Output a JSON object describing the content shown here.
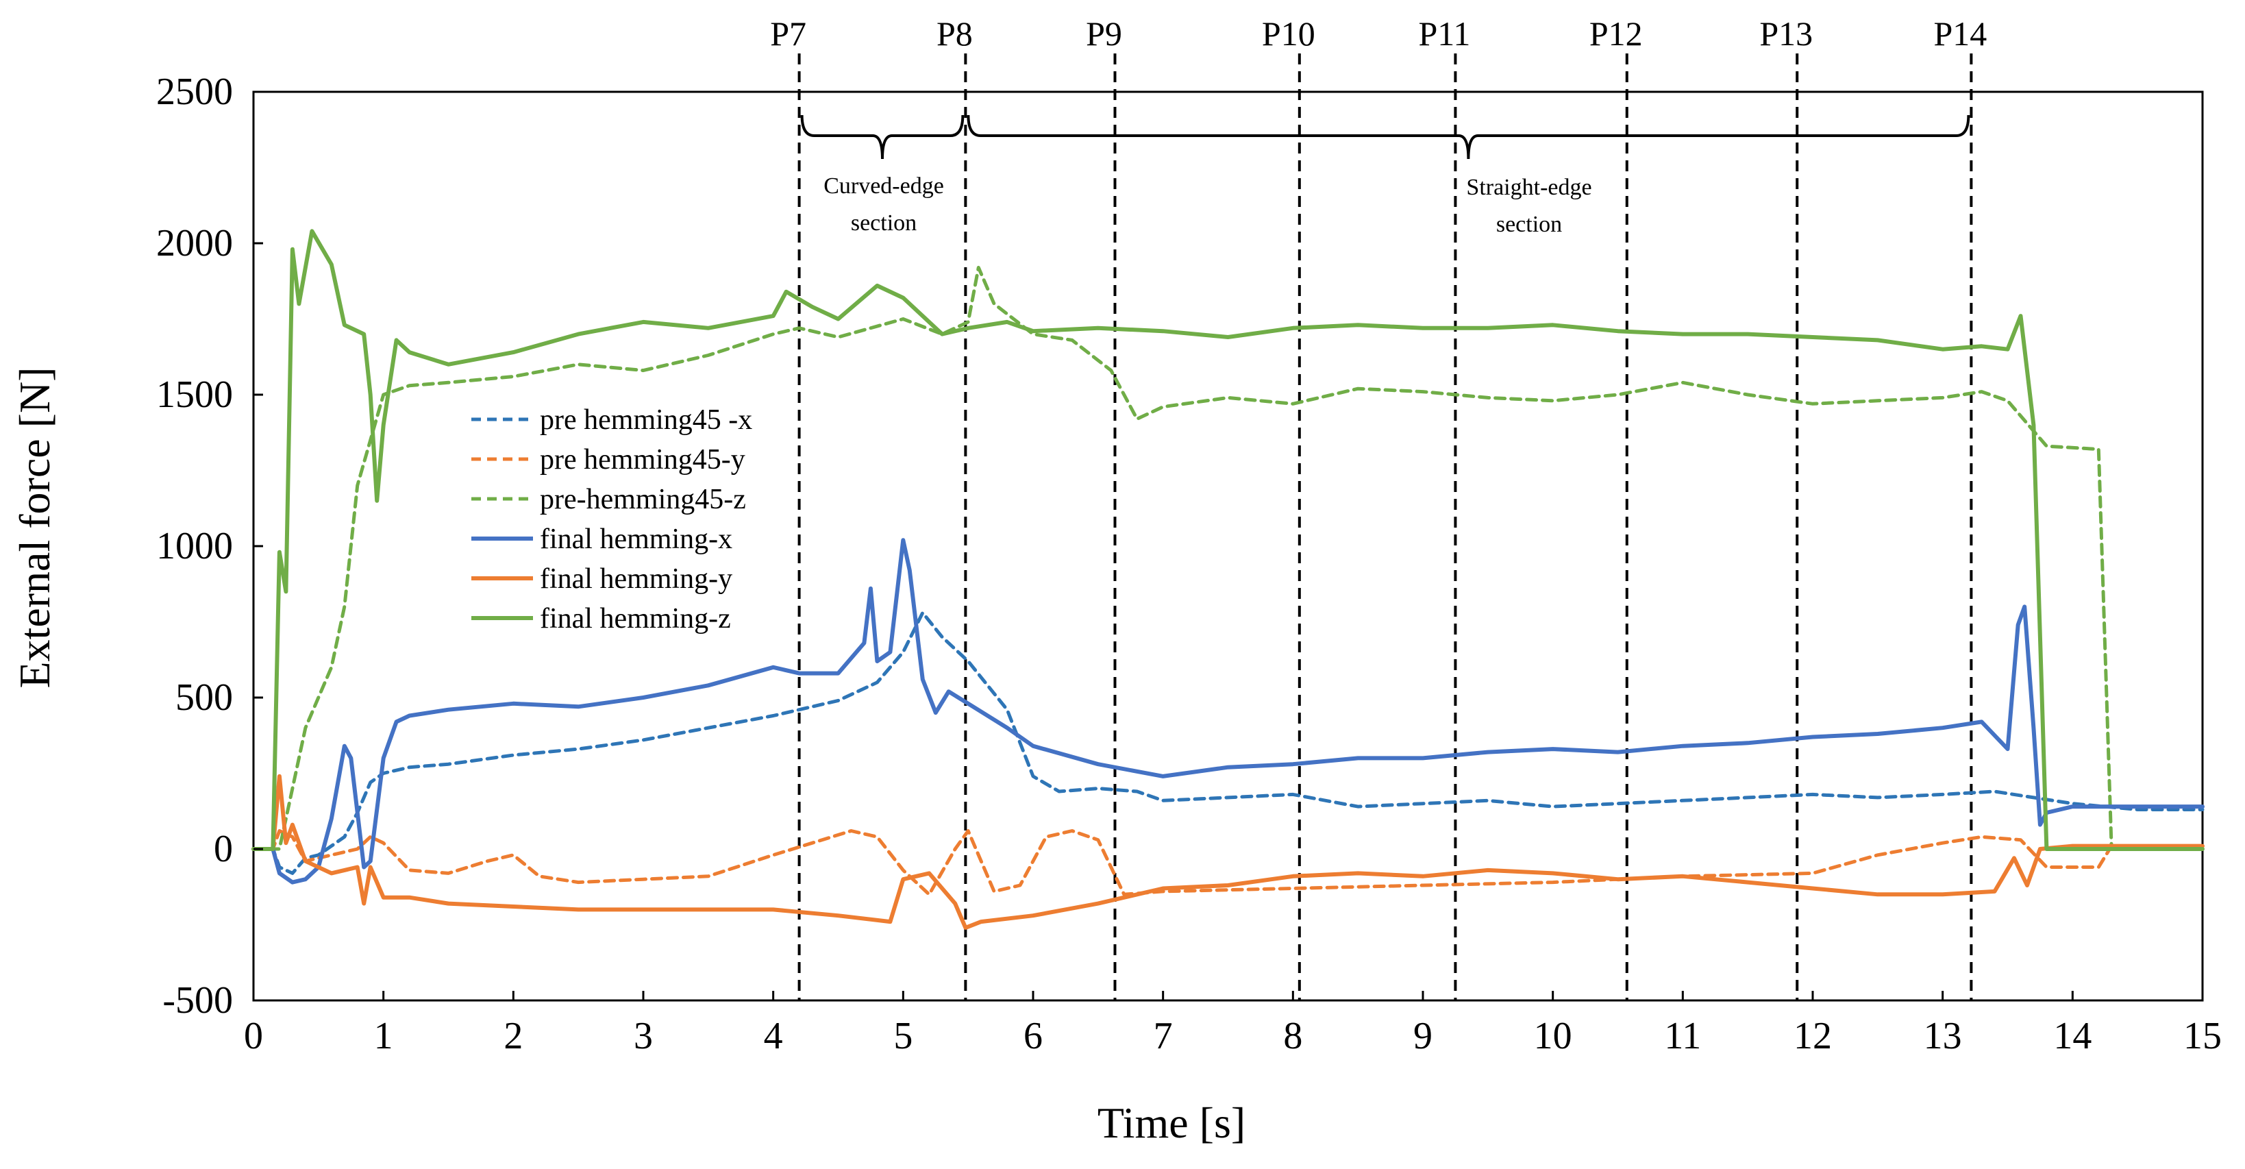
{
  "chart_data": {
    "type": "line",
    "xlabel": "Time [s]",
    "ylabel": "External force [N]",
    "xlim": [
      0,
      15
    ],
    "ylim": [
      -500,
      2500
    ],
    "xticks": [
      0,
      1,
      2,
      3,
      4,
      5,
      6,
      7,
      8,
      9,
      10,
      11,
      12,
      13,
      14,
      15
    ],
    "yticks": [
      -500,
      0,
      500,
      1000,
      1500,
      2000,
      2500
    ],
    "markers": [
      {
        "label": "P7",
        "x": 4.2
      },
      {
        "label": "P8",
        "x": 5.48
      },
      {
        "label": "P9",
        "x": 6.63
      },
      {
        "label": "P10",
        "x": 8.05
      },
      {
        "label": "P11",
        "x": 9.25
      },
      {
        "label": "P12",
        "x": 10.57
      },
      {
        "label": "P13",
        "x": 11.88
      },
      {
        "label": "P14",
        "x": 13.22
      }
    ],
    "sections": [
      {
        "label_lines": [
          "Curved-edge",
          "section"
        ],
        "from": 4.2,
        "to": 5.48
      },
      {
        "label_lines": [
          "Straight-edge",
          "section"
        ],
        "from": 5.48,
        "to": 13.22
      }
    ],
    "series": [
      {
        "name": "pre hemming45 -x",
        "color": "#2E75B6",
        "dashed": true,
        "points": [
          [
            0,
            0
          ],
          [
            0.15,
            0
          ],
          [
            0.2,
            -60
          ],
          [
            0.3,
            -80
          ],
          [
            0.4,
            -30
          ],
          [
            0.5,
            -20
          ],
          [
            0.6,
            10
          ],
          [
            0.7,
            40
          ],
          [
            0.8,
            120
          ],
          [
            0.9,
            220
          ],
          [
            1.0,
            250
          ],
          [
            1.2,
            270
          ],
          [
            1.5,
            280
          ],
          [
            2.0,
            310
          ],
          [
            2.5,
            330
          ],
          [
            3.0,
            360
          ],
          [
            3.5,
            400
          ],
          [
            4.0,
            440
          ],
          [
            4.2,
            460
          ],
          [
            4.5,
            490
          ],
          [
            4.8,
            550
          ],
          [
            5.0,
            650
          ],
          [
            5.15,
            780
          ],
          [
            5.3,
            700
          ],
          [
            5.5,
            620
          ],
          [
            5.8,
            460
          ],
          [
            6.0,
            240
          ],
          [
            6.2,
            190
          ],
          [
            6.5,
            200
          ],
          [
            6.8,
            190
          ],
          [
            7.0,
            160
          ],
          [
            7.5,
            170
          ],
          [
            8.0,
            180
          ],
          [
            8.5,
            140
          ],
          [
            9.0,
            150
          ],
          [
            9.5,
            160
          ],
          [
            10.0,
            140
          ],
          [
            10.5,
            150
          ],
          [
            11.0,
            160
          ],
          [
            11.5,
            170
          ],
          [
            12.0,
            180
          ],
          [
            12.5,
            170
          ],
          [
            13.0,
            180
          ],
          [
            13.4,
            190
          ],
          [
            13.7,
            170
          ],
          [
            14.0,
            150
          ],
          [
            14.5,
            130
          ],
          [
            15.0,
            130
          ]
        ]
      },
      {
        "name": "pre hemming45-y",
        "color": "#ED7D31",
        "dashed": true,
        "points": [
          [
            0,
            0
          ],
          [
            0.15,
            0
          ],
          [
            0.2,
            60
          ],
          [
            0.3,
            40
          ],
          [
            0.4,
            -40
          ],
          [
            0.6,
            -20
          ],
          [
            0.8,
            0
          ],
          [
            0.9,
            40
          ],
          [
            1.0,
            20
          ],
          [
            1.2,
            -70
          ],
          [
            1.5,
            -80
          ],
          [
            1.8,
            -40
          ],
          [
            2.0,
            -20
          ],
          [
            2.2,
            -90
          ],
          [
            2.5,
            -110
          ],
          [
            3.0,
            -100
          ],
          [
            3.5,
            -90
          ],
          [
            4.0,
            -20
          ],
          [
            4.3,
            20
          ],
          [
            4.6,
            60
          ],
          [
            4.8,
            40
          ],
          [
            5.0,
            -70
          ],
          [
            5.2,
            -150
          ],
          [
            5.4,
            0
          ],
          [
            5.5,
            60
          ],
          [
            5.7,
            -140
          ],
          [
            5.9,
            -120
          ],
          [
            6.1,
            40
          ],
          [
            6.3,
            60
          ],
          [
            6.5,
            30
          ],
          [
            6.7,
            -150
          ],
          [
            7.0,
            -140
          ],
          [
            8.0,
            -130
          ],
          [
            9.0,
            -120
          ],
          [
            10.0,
            -110
          ],
          [
            11.0,
            -90
          ],
          [
            12.0,
            -80
          ],
          [
            12.5,
            -20
          ],
          [
            13.0,
            20
          ],
          [
            13.3,
            40
          ],
          [
            13.6,
            30
          ],
          [
            13.8,
            -60
          ],
          [
            14.2,
            -60
          ],
          [
            14.3,
            10
          ],
          [
            15.0,
            10
          ]
        ]
      },
      {
        "name": "pre-hemming45-z",
        "color": "#70AD47",
        "dashed": true,
        "points": [
          [
            0,
            0
          ],
          [
            0.2,
            0
          ],
          [
            0.3,
            200
          ],
          [
            0.4,
            400
          ],
          [
            0.5,
            500
          ],
          [
            0.6,
            600
          ],
          [
            0.7,
            800
          ],
          [
            0.8,
            1200
          ],
          [
            0.9,
            1350
          ],
          [
            1.0,
            1500
          ],
          [
            1.2,
            1530
          ],
          [
            1.5,
            1540
          ],
          [
            2.0,
            1560
          ],
          [
            2.5,
            1600
          ],
          [
            3.0,
            1580
          ],
          [
            3.5,
            1630
          ],
          [
            4.0,
            1700
          ],
          [
            4.2,
            1720
          ],
          [
            4.5,
            1690
          ],
          [
            5.0,
            1750
          ],
          [
            5.3,
            1700
          ],
          [
            5.5,
            1740
          ],
          [
            5.58,
            1920
          ],
          [
            5.7,
            1800
          ],
          [
            6.0,
            1700
          ],
          [
            6.3,
            1680
          ],
          [
            6.6,
            1580
          ],
          [
            6.8,
            1420
          ],
          [
            7.0,
            1460
          ],
          [
            7.5,
            1490
          ],
          [
            8.0,
            1470
          ],
          [
            8.5,
            1520
          ],
          [
            9.0,
            1510
          ],
          [
            9.5,
            1490
          ],
          [
            10.0,
            1480
          ],
          [
            10.5,
            1500
          ],
          [
            11.0,
            1540
          ],
          [
            11.5,
            1500
          ],
          [
            12.0,
            1470
          ],
          [
            12.5,
            1480
          ],
          [
            13.0,
            1490
          ],
          [
            13.3,
            1510
          ],
          [
            13.5,
            1480
          ],
          [
            13.8,
            1330
          ],
          [
            14.2,
            1320
          ],
          [
            14.3,
            0
          ],
          [
            15.0,
            0
          ]
        ]
      },
      {
        "name": "final hemming-x",
        "color": "#4472C4",
        "dashed": false,
        "points": [
          [
            0,
            0
          ],
          [
            0.15,
            0
          ],
          [
            0.2,
            -80
          ],
          [
            0.3,
            -110
          ],
          [
            0.4,
            -100
          ],
          [
            0.5,
            -60
          ],
          [
            0.6,
            100
          ],
          [
            0.7,
            340
          ],
          [
            0.75,
            300
          ],
          [
            0.85,
            -60
          ],
          [
            0.9,
            -40
          ],
          [
            1.0,
            300
          ],
          [
            1.1,
            420
          ],
          [
            1.2,
            440
          ],
          [
            1.5,
            460
          ],
          [
            2.0,
            480
          ],
          [
            2.5,
            470
          ],
          [
            3.0,
            500
          ],
          [
            3.5,
            540
          ],
          [
            4.0,
            600
          ],
          [
            4.2,
            580
          ],
          [
            4.5,
            580
          ],
          [
            4.7,
            680
          ],
          [
            4.75,
            860
          ],
          [
            4.8,
            620
          ],
          [
            4.9,
            650
          ],
          [
            5.0,
            1020
          ],
          [
            5.05,
            920
          ],
          [
            5.15,
            560
          ],
          [
            5.25,
            450
          ],
          [
            5.35,
            520
          ],
          [
            5.5,
            480
          ],
          [
            5.8,
            400
          ],
          [
            6.0,
            340
          ],
          [
            6.5,
            280
          ],
          [
            7.0,
            240
          ],
          [
            7.5,
            270
          ],
          [
            8.0,
            280
          ],
          [
            8.5,
            300
          ],
          [
            9.0,
            300
          ],
          [
            9.5,
            320
          ],
          [
            10.0,
            330
          ],
          [
            10.5,
            320
          ],
          [
            11.0,
            340
          ],
          [
            11.5,
            350
          ],
          [
            12.0,
            370
          ],
          [
            12.5,
            380
          ],
          [
            13.0,
            400
          ],
          [
            13.3,
            420
          ],
          [
            13.5,
            330
          ],
          [
            13.58,
            740
          ],
          [
            13.63,
            800
          ],
          [
            13.7,
            400
          ],
          [
            13.75,
            80
          ],
          [
            13.8,
            120
          ],
          [
            14.0,
            140
          ],
          [
            15.0,
            140
          ]
        ]
      },
      {
        "name": "final hemming-y",
        "color": "#ED7D31",
        "dashed": false,
        "points": [
          [
            0,
            0
          ],
          [
            0.15,
            0
          ],
          [
            0.2,
            240
          ],
          [
            0.25,
            20
          ],
          [
            0.3,
            80
          ],
          [
            0.4,
            -40
          ],
          [
            0.6,
            -80
          ],
          [
            0.8,
            -60
          ],
          [
            0.85,
            -180
          ],
          [
            0.9,
            -60
          ],
          [
            1.0,
            -160
          ],
          [
            1.2,
            -160
          ],
          [
            1.5,
            -180
          ],
          [
            2.0,
            -190
          ],
          [
            2.5,
            -200
          ],
          [
            3.0,
            -200
          ],
          [
            3.5,
            -200
          ],
          [
            4.0,
            -200
          ],
          [
            4.5,
            -220
          ],
          [
            4.9,
            -240
          ],
          [
            5.0,
            -100
          ],
          [
            5.2,
            -80
          ],
          [
            5.4,
            -180
          ],
          [
            5.48,
            -260
          ],
          [
            5.6,
            -240
          ],
          [
            6.0,
            -220
          ],
          [
            6.5,
            -180
          ],
          [
            7.0,
            -130
          ],
          [
            7.5,
            -120
          ],
          [
            8.0,
            -90
          ],
          [
            8.5,
            -80
          ],
          [
            9.0,
            -90
          ],
          [
            9.5,
            -70
          ],
          [
            10.0,
            -80
          ],
          [
            10.5,
            -100
          ],
          [
            11.0,
            -90
          ],
          [
            11.5,
            -110
          ],
          [
            12.0,
            -130
          ],
          [
            12.5,
            -150
          ],
          [
            13.0,
            -150
          ],
          [
            13.4,
            -140
          ],
          [
            13.55,
            -30
          ],
          [
            13.65,
            -120
          ],
          [
            13.75,
            0
          ],
          [
            14.0,
            10
          ],
          [
            15.0,
            10
          ]
        ]
      },
      {
        "name": "final hemming-z",
        "color": "#70AD47",
        "dashed": false,
        "points": [
          [
            0,
            0
          ],
          [
            0.15,
            0
          ],
          [
            0.2,
            980
          ],
          [
            0.25,
            850
          ],
          [
            0.3,
            1980
          ],
          [
            0.35,
            1800
          ],
          [
            0.45,
            2040
          ],
          [
            0.6,
            1930
          ],
          [
            0.7,
            1730
          ],
          [
            0.85,
            1700
          ],
          [
            0.9,
            1500
          ],
          [
            0.95,
            1150
          ],
          [
            1.0,
            1400
          ],
          [
            1.1,
            1680
          ],
          [
            1.2,
            1640
          ],
          [
            1.5,
            1600
          ],
          [
            2.0,
            1640
          ],
          [
            2.5,
            1700
          ],
          [
            3.0,
            1740
          ],
          [
            3.5,
            1720
          ],
          [
            4.0,
            1760
          ],
          [
            4.1,
            1840
          ],
          [
            4.3,
            1790
          ],
          [
            4.5,
            1750
          ],
          [
            4.8,
            1860
          ],
          [
            5.0,
            1820
          ],
          [
            5.3,
            1700
          ],
          [
            5.5,
            1720
          ],
          [
            5.8,
            1740
          ],
          [
            6.0,
            1710
          ],
          [
            6.5,
            1720
          ],
          [
            7.0,
            1710
          ],
          [
            7.5,
            1690
          ],
          [
            8.0,
            1720
          ],
          [
            8.5,
            1730
          ],
          [
            9.0,
            1720
          ],
          [
            9.5,
            1720
          ],
          [
            10.0,
            1730
          ],
          [
            10.5,
            1710
          ],
          [
            11.0,
            1700
          ],
          [
            11.5,
            1700
          ],
          [
            12.0,
            1690
          ],
          [
            12.5,
            1680
          ],
          [
            13.0,
            1650
          ],
          [
            13.3,
            1660
          ],
          [
            13.5,
            1650
          ],
          [
            13.6,
            1760
          ],
          [
            13.7,
            1400
          ],
          [
            13.8,
            0
          ],
          [
            15.0,
            0
          ]
        ]
      }
    ]
  }
}
